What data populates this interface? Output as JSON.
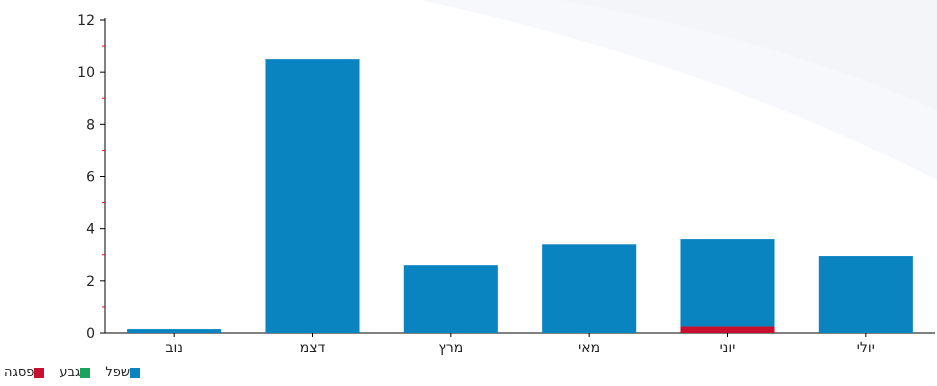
{
  "colors": {
    "background": "#ffffff",
    "wash": "#f2f4f8",
    "axis": "#000000",
    "minor_tick": "#c8102e",
    "text": "#222222"
  },
  "chart_data": {
    "type": "bar",
    "stacked": true,
    "categories": [
      "נוב",
      "דצמ",
      "מרץ",
      "מאי",
      "יוני",
      "יולי"
    ],
    "series": [
      {
        "name": "שפל",
        "color": "#0a84c1",
        "values": [
          0.15,
          10.5,
          2.6,
          3.4,
          3.35,
          2.95
        ]
      },
      {
        "name": "גבע",
        "color": "#1aa35a",
        "values": [
          0,
          0,
          0,
          0,
          0,
          0
        ]
      },
      {
        "name": "פסגה",
        "color": "#c8102e",
        "values": [
          0,
          0,
          0,
          0,
          0.25,
          0
        ]
      }
    ],
    "ylim": [
      0,
      12
    ],
    "yticks": [
      0,
      2,
      4,
      6,
      8,
      10,
      12
    ],
    "grid": false,
    "legend": "bottom-left"
  }
}
